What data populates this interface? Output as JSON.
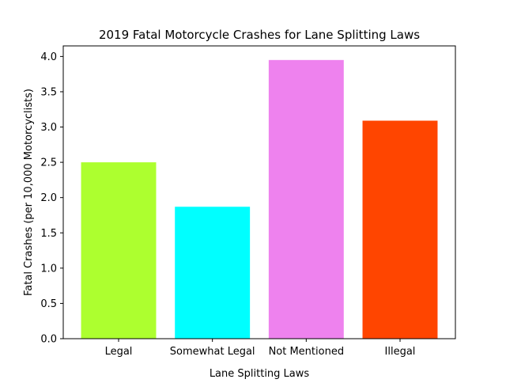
{
  "chart_data": {
    "type": "bar",
    "title": "2019 Fatal Motorcycle Crashes for Lane Splitting Laws",
    "xlabel": "Lane Splitting Laws",
    "ylabel": "Fatal Crashes (per 10,000  Motorcyclists)",
    "categories": [
      "Legal",
      "Somewhat Legal",
      "Not Mentioned",
      "Illegal"
    ],
    "values": [
      2.5,
      1.87,
      3.95,
      3.09
    ],
    "colors": [
      "#adff2f",
      "#00ffff",
      "#ee82ee",
      "#ff4500"
    ],
    "ylim": [
      0,
      4.15
    ],
    "yticks": [
      0.0,
      0.5,
      1.0,
      1.5,
      2.0,
      2.5,
      3.0,
      3.5,
      4.0
    ],
    "ytick_labels": [
      "0.0",
      "0.5",
      "1.0",
      "1.5",
      "2.0",
      "2.5",
      "3.0",
      "3.5",
      "4.0"
    ],
    "grid": false,
    "legend": "none"
  }
}
